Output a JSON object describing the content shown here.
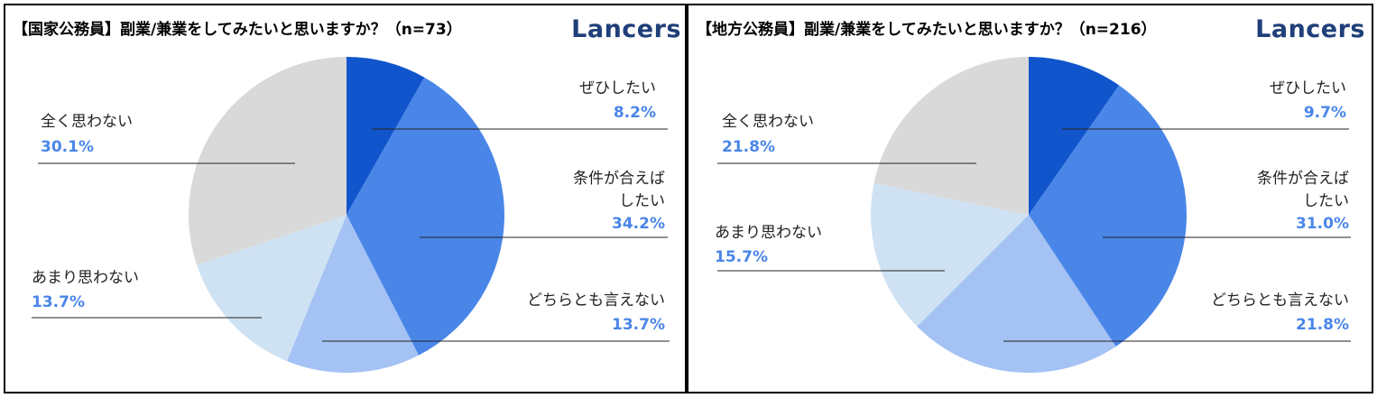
{
  "logo": "Lancers",
  "chart_data": [
    {
      "type": "pie",
      "title": "【国家公務員】副業/兼業をしてみたいと思いますか？（n=73）",
      "categories": [
        "ぜひしたい",
        "条件が合えばしたい",
        "どちらとも言えない",
        "あまり思わない",
        "全く思わない"
      ],
      "values": [
        8.2,
        34.2,
        13.7,
        13.7,
        30.1
      ],
      "labels": [
        "8.2%",
        "34.2%",
        "13.7%",
        "13.7%",
        "30.1%"
      ],
      "colors": [
        "#1155cc",
        "#4a86e8",
        "#a4c2f4",
        "#cfe2f3",
        "#d9d9d9"
      ],
      "start": "top",
      "direction": "clockwise"
    },
    {
      "type": "pie",
      "title": "【地方公務員】副業/兼業をしてみたいと思いますか？（n=216）",
      "categories": [
        "ぜひしたい",
        "条件が合えばしたい",
        "どちらとも言えない",
        "あまり思わない",
        "全く思わない"
      ],
      "values": [
        9.7,
        31.0,
        21.8,
        15.7,
        21.8
      ],
      "labels": [
        "9.7%",
        "31.0%",
        "21.8%",
        "15.7%",
        "21.8%"
      ],
      "colors": [
        "#1155cc",
        "#4a86e8",
        "#a4c2f4",
        "#cfe2f3",
        "#d9d9d9"
      ],
      "start": "top",
      "direction": "clockwise"
    }
  ],
  "text": {
    "cat1a": "条件が合えば",
    "cat1b": "したい"
  }
}
